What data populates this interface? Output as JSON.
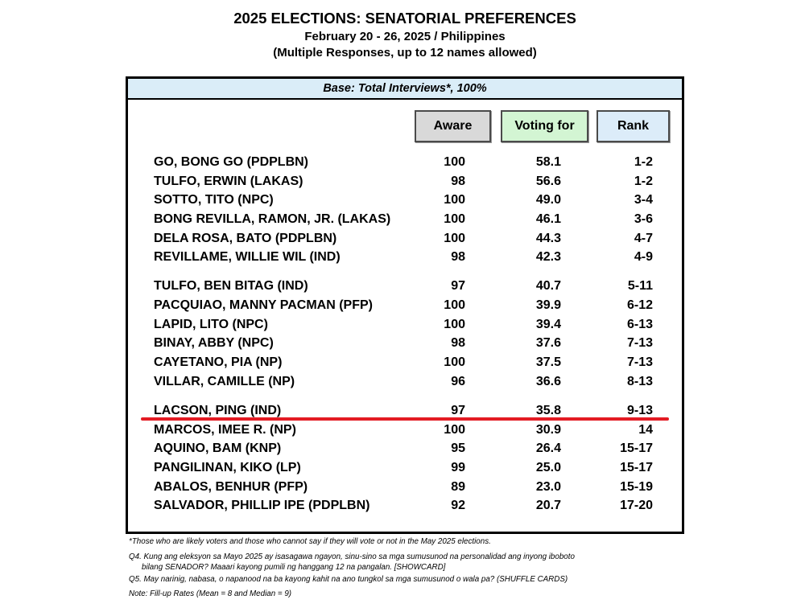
{
  "title": "2025 ELECTIONS: SENATORIAL PREFERENCES",
  "subtitle": "February 20 - 26, 2025 / Philippines",
  "response_note": "(Multiple Responses, up to 12 names allowed)",
  "colors": {
    "base_band": "#daedf8",
    "aware_header": "#d9d9d9",
    "voting_header": "#d3f5d3",
    "rank_header": "#dcecf9",
    "cutoff_line": "#e31b23"
  },
  "table": {
    "base_label": "Base: Total Interviews*, 100%",
    "columns": {
      "aware": "Aware",
      "voting_for": "Voting for",
      "rank": "Rank"
    },
    "rows": [
      {
        "name": "GO, BONG GO (PDPLBN)",
        "aware": 100,
        "voting_for": "58.1",
        "rank": "1-2"
      },
      {
        "name": "TULFO, ERWIN (LAKAS)",
        "aware": 98,
        "voting_for": "56.6",
        "rank": "1-2"
      },
      {
        "name": "SOTTO, TITO (NPC)",
        "aware": 100,
        "voting_for": "49.0",
        "rank": "3-4"
      },
      {
        "name": "BONG REVILLA, RAMON, JR. (LAKAS)",
        "aware": 100,
        "voting_for": "46.1",
        "rank": "3-6"
      },
      {
        "name": "DELA ROSA, BATO (PDPLBN)",
        "aware": 100,
        "voting_for": "44.3",
        "rank": "4-7"
      },
      {
        "name": "REVILLAME, WILLIE WIL (IND)",
        "aware": 98,
        "voting_for": "42.3",
        "rank": "4-9"
      },
      {
        "name": "TULFO, BEN BITAG (IND)",
        "aware": 97,
        "voting_for": "40.7",
        "rank": "5-11"
      },
      {
        "name": "PACQUIAO, MANNY PACMAN (PFP)",
        "aware": 100,
        "voting_for": "39.9",
        "rank": "6-12"
      },
      {
        "name": "LAPID, LITO (NPC)",
        "aware": 100,
        "voting_for": "39.4",
        "rank": "6-13"
      },
      {
        "name": "BINAY, ABBY (NPC)",
        "aware": 98,
        "voting_for": "37.6",
        "rank": "7-13"
      },
      {
        "name": "CAYETANO, PIA (NP)",
        "aware": 100,
        "voting_for": "37.5",
        "rank": "7-13"
      },
      {
        "name": "VILLAR, CAMILLE (NP)",
        "aware": 96,
        "voting_for": "36.6",
        "rank": "8-13"
      },
      {
        "name": "LACSON, PING (IND)",
        "aware": 97,
        "voting_for": "35.8",
        "rank": "9-13"
      },
      {
        "name": "MARCOS, IMEE R. (NP)",
        "aware": 100,
        "voting_for": "30.9",
        "rank": "14"
      },
      {
        "name": "AQUINO, BAM (KNP)",
        "aware": 95,
        "voting_for": "26.4",
        "rank": "15-17"
      },
      {
        "name": "PANGILINAN, KIKO (LP)",
        "aware": 99,
        "voting_for": "25.0",
        "rank": "15-17"
      },
      {
        "name": "ABALOS, BENHUR (PFP)",
        "aware": 89,
        "voting_for": "23.0",
        "rank": "15-19"
      },
      {
        "name": "SALVADOR, PHILLIP IPE (PDPLBN)",
        "aware": 92,
        "voting_for": "20.7",
        "rank": "17-20"
      }
    ]
  },
  "footnotes": {
    "asterisk": "*Those who are likely voters and those who cannot say if they will vote or not in the May 2025 elections.",
    "q4_line1": "Q4. Kung ang eleksyon sa Mayo 2025 ay isasagawa ngayon, sinu-sino sa mga sumusunod na personalidad ang inyong iboboto",
    "q4_line2": "bilang SENADOR? Maaari kayong pumili ng hanggang 12 na pangalan. [SHOWCARD]",
    "q5": "Q5. May narinig, nabasa, o napanood na ba kayong kahit na ano tungkol sa mga sumusunod o wala pa? (SHUFFLE CARDS)",
    "note": "Note: Fill-up Rates (Mean = 8 and Median = 9)"
  }
}
